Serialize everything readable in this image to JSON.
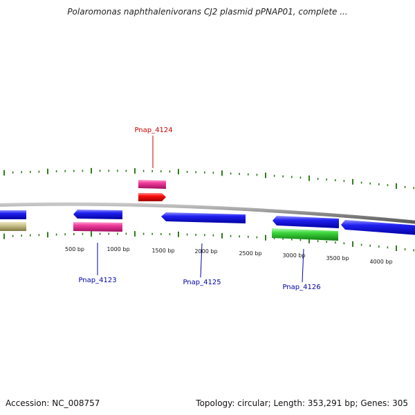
{
  "title": "Polaromonas naphthalenivorans CJ2 plasmid pPNAP01, complete ...",
  "footer": {
    "accession": "Accession: NC_008757",
    "summary": "Topology: circular; Length: 353,291 bp; Genes: 305"
  },
  "colors": {
    "backbone": "#8a8a8a",
    "tick": "#2e7d1a",
    "blue": "#1a1ae6",
    "magenta": "#e63c9c",
    "red": "#ff1010",
    "green": "#3fd33f",
    "khaki": "#c8c08a",
    "label_red": "#cc0000",
    "label_blue": "#0000aa"
  },
  "scale_labels": [
    "500 bp",
    "1000 bp",
    "1500 bp",
    "2000 bp",
    "2500 bp",
    "3000 bp",
    "3500 bp",
    "4000 bp"
  ],
  "gene_labels": [
    {
      "name": "Pnap_4124",
      "color": "label_red"
    },
    {
      "name": "Pnap_4123",
      "color": "label_blue"
    },
    {
      "name": "Pnap_4125",
      "color": "label_blue"
    },
    {
      "name": "Pnap_4126",
      "color": "label_blue"
    }
  ]
}
